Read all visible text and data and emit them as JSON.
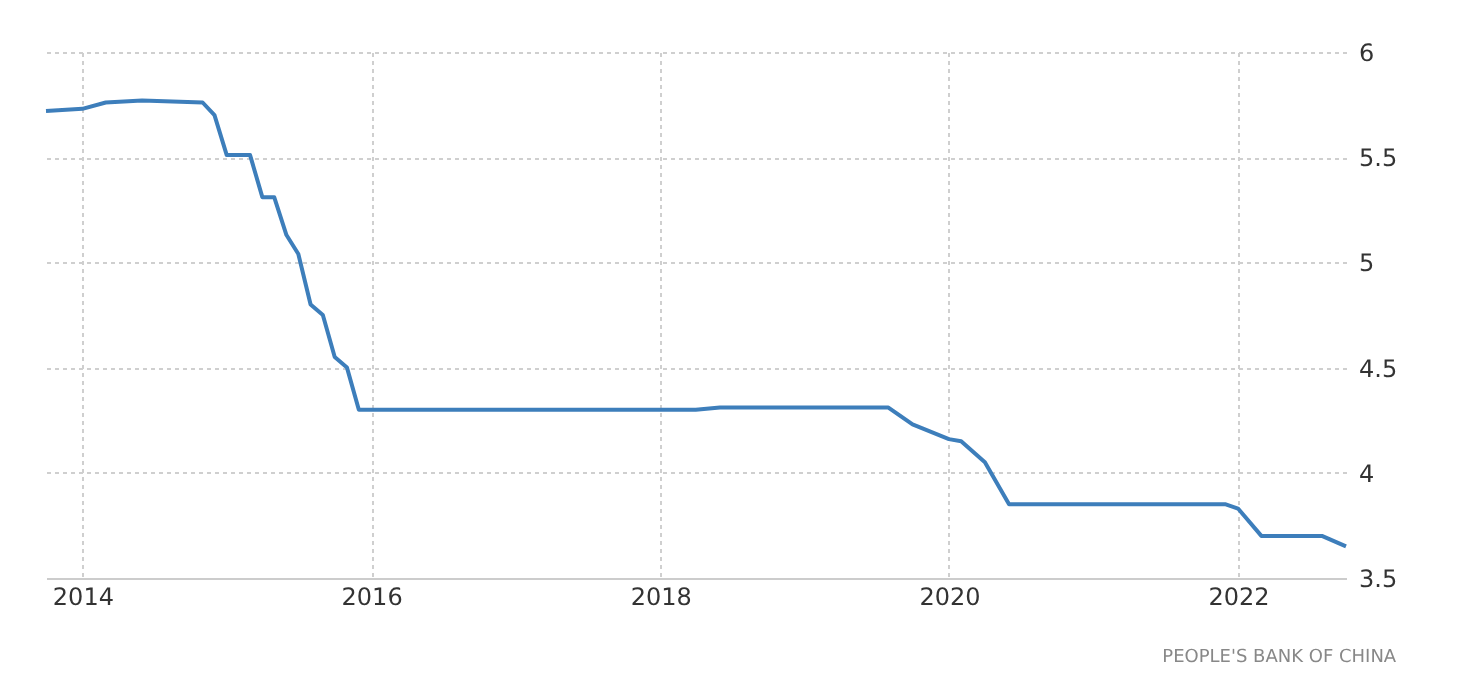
{
  "chart_data": {
    "type": "line",
    "x": [
      "2013-10",
      "2014-01",
      "2014-03",
      "2014-06",
      "2014-11",
      "2014-12",
      "2015-01",
      "2015-03",
      "2015-04",
      "2015-05",
      "2015-06",
      "2015-07",
      "2015-08",
      "2015-09",
      "2015-10",
      "2015-11",
      "2015-12",
      "2018-04",
      "2018-06",
      "2019-08",
      "2019-10",
      "2020-01",
      "2020-02",
      "2020-04",
      "2020-06",
      "2021-12",
      "2022-01",
      "2022-03",
      "2022-08",
      "2022-10"
    ],
    "series": [
      {
        "color": "#3d7ebb",
        "values": [
          5.72,
          5.73,
          5.76,
          5.77,
          5.76,
          5.7,
          5.51,
          5.51,
          5.31,
          5.31,
          5.13,
          5.04,
          4.8,
          4.75,
          4.55,
          4.5,
          4.3,
          4.3,
          4.31,
          4.31,
          4.23,
          4.16,
          4.15,
          4.05,
          3.85,
          3.85,
          3.83,
          3.7,
          3.7,
          3.65
        ]
      }
    ],
    "xlim": [
      "2013-10",
      "2022-10"
    ],
    "xticks": [
      {
        "value": "2014",
        "label": "2014"
      },
      {
        "value": "2016",
        "label": "2016"
      },
      {
        "value": "2018",
        "label": "2018"
      },
      {
        "value": "2020",
        "label": "2020"
      },
      {
        "value": "2022",
        "label": "2022"
      }
    ],
    "ylim": [
      3.5,
      6
    ],
    "yticks": [
      3.5,
      4,
      4.5,
      5,
      5.5,
      6
    ],
    "grid": true,
    "annotations": [
      "PEOPLE'S BANK OF CHINA"
    ]
  }
}
